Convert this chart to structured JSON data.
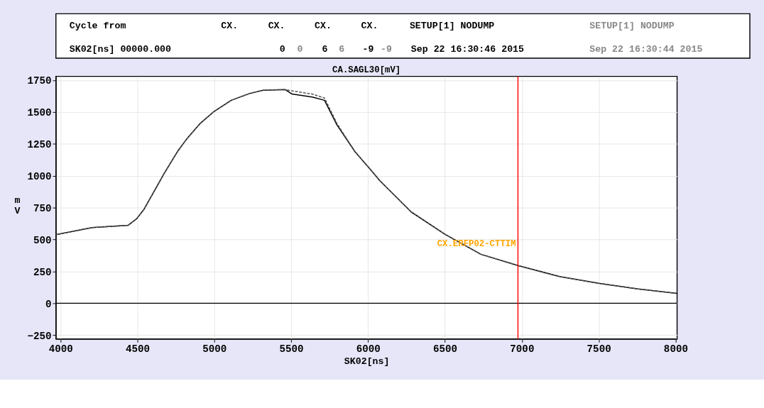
{
  "chart_data": {
    "type": "line",
    "title": "CA.SAGL30[mV]",
    "xlabel": "SK02[ns]",
    "ylabel": "mV",
    "xlim": [
      3970,
      8010
    ],
    "xticks": [
      4000,
      4500,
      5000,
      5500,
      6000,
      6500,
      7000,
      7500,
      8000
    ],
    "ylim": [
      -280,
      1780
    ],
    "yticks": [
      -250,
      0,
      250,
      500,
      750,
      1000,
      1250,
      1500,
      1750
    ],
    "grid": true,
    "series": [
      {
        "color": "#000000",
        "line_style": "solid",
        "x": [
          3970,
          4205,
          4439,
          4496,
          4541,
          4599,
          4672,
          4760,
          4819,
          4906,
          4999,
          5110,
          5228,
          5316,
          5462,
          5506,
          5637,
          5717,
          5798,
          5915,
          6018,
          6076,
          6281,
          6500,
          6734,
          6975,
          7246,
          7500,
          7757,
          8010
        ],
        "values": [
          538,
          594,
          611,
          664,
          734,
          857,
          1014,
          1189,
          1286,
          1408,
          1505,
          1592,
          1645,
          1671,
          1676,
          1641,
          1618,
          1592,
          1399,
          1189,
          1046,
          962,
          716,
          541,
          384,
          296,
          209,
          156,
          112,
          77
        ]
      },
      {
        "color": "#555555",
        "line_style": "dashed",
        "x": [
          3970,
          4205,
          4439,
          4496,
          4541,
          4599,
          4672,
          4760,
          4819,
          4906,
          4999,
          5110,
          5228,
          5316,
          5462,
          5506,
          5637,
          5717,
          5798,
          5915,
          6018,
          6076,
          6281,
          6500,
          6734,
          6975,
          7246,
          7500,
          7757,
          8010
        ],
        "values": [
          538,
          594,
          611,
          664,
          734,
          857,
          1014,
          1189,
          1286,
          1408,
          1505,
          1592,
          1645,
          1671,
          1676,
          1666,
          1641,
          1610,
          1410,
          1189,
          1046,
          962,
          716,
          541,
          384,
          296,
          209,
          156,
          112,
          77
        ]
      }
    ],
    "ref_lines": [
      {
        "axis": "y",
        "value": 0,
        "color": "#000000"
      },
      {
        "axis": "x",
        "value": 6975,
        "label": "CX.ERFP02-CTTIM",
        "color": "#ff0000"
      }
    ],
    "annotations": [
      "Cycle from",
      "SK02[ns] 00000.000",
      "CX.",
      "CX.",
      "CX.",
      "CX.",
      "0",
      "0",
      "6",
      "6",
      "-9",
      "-9",
      "SETUP[1] NODUMP",
      "Sep 22 16:30:46 2015",
      "SETUP[1] NODUMP",
      "Sep 22 16:30:44 2015"
    ]
  }
}
